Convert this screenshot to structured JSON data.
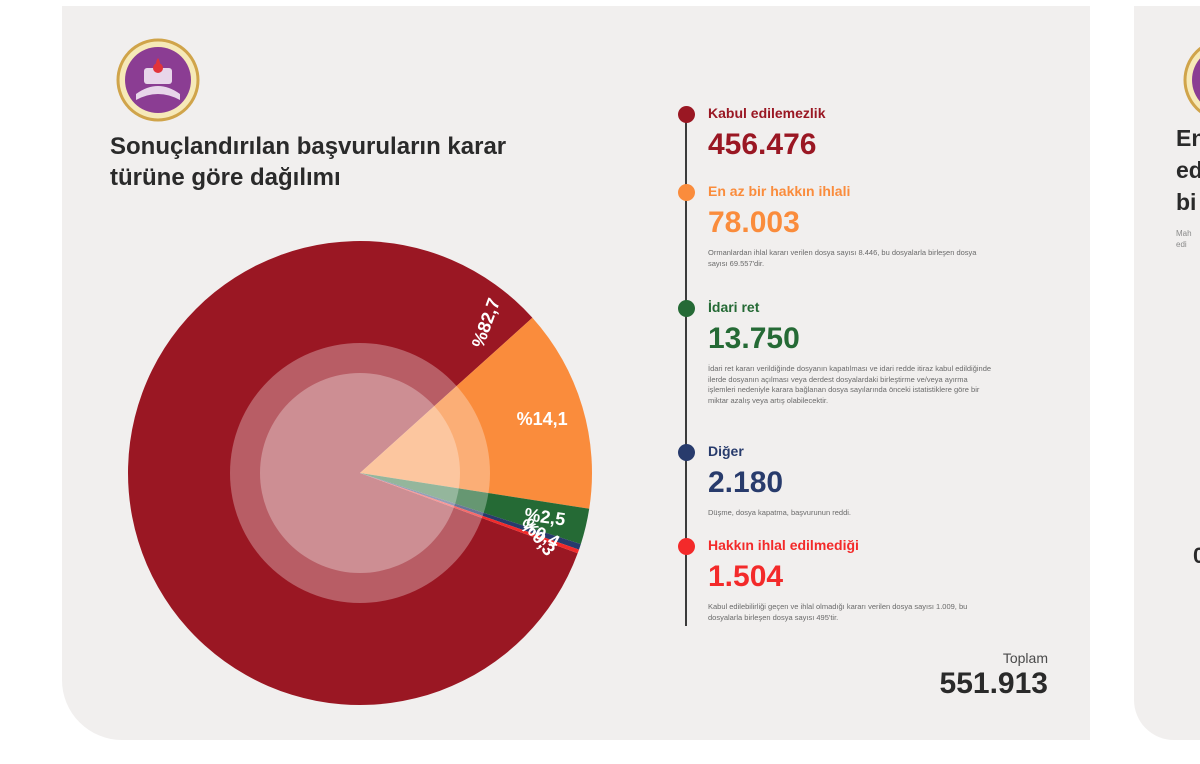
{
  "header": {
    "title": "Sonuçlandırılan başvuruların karar türüne göre dağılımı"
  },
  "chart_data": {
    "type": "pie",
    "title": "Sonuçlandırılan başvuruların karar türüne göre dağılımı",
    "slices": [
      {
        "name": "Kabul edilemezlik",
        "value": 456476,
        "percent_label": "%82,7",
        "color": "#9a1723"
      },
      {
        "name": "En az bir hakkın ihlali",
        "value": 78003,
        "percent_label": "%14,1",
        "color": "#fa8c3c"
      },
      {
        "name": "İdari ret",
        "value": 13750,
        "percent_label": "%2,5",
        "color": "#256a35"
      },
      {
        "name": "Diğer",
        "value": 2180,
        "percent_label": "%0,4",
        "color": "#283b6c"
      },
      {
        "name": "Hakkın ihlal edilmediği",
        "value": 1504,
        "percent_label": "%0,3",
        "color": "#f32a2a"
      }
    ],
    "legend": "right",
    "total_label": "Toplam",
    "total_value": "551.913"
  },
  "legend": [
    {
      "label": "Kabul edilemezlik",
      "value": "456.476",
      "note": "",
      "color": "#9a1723"
    },
    {
      "label": "En az bir hakkın ihlali",
      "value": "78.003",
      "note": "Ormanlardan ihlal kararı verilen dosya sayısı 8.446, bu dosyalarla birleşen dosya sayısı 69.557'dir.",
      "color": "#fa8c3c"
    },
    {
      "label": "İdari ret",
      "value": "13.750",
      "note": "İdari ret kararı verildiğinde dosyanın kapatılması ve idari redde itiraz kabul edildiğinde ilerde dosyanın açılması veya derdest dosyalardaki birleştirme ve/veya ayırma işlemleri nedeniyle karara bağlanan dosya sayılarında önceki istatistiklere göre bir miktar azalış veya artış olabilecektir.",
      "color": "#256a35"
    },
    {
      "label": "Diğer",
      "value": "2.180",
      "note": "Düşme, dosya kapatma, başvurunun reddi.",
      "color": "#283b6c"
    },
    {
      "label": "Hakkın ihlal edilmediği",
      "value": "1.504",
      "note": "Kabul edilebilirliği geçen ve ihlal olmadığı kararı verilen dosya sayısı 1.009, bu dosyalarla birleşen dosya sayısı 495'tir.",
      "color": "#f32a2a"
    }
  ],
  "total": {
    "label": "Toplam",
    "value": "551.913"
  },
  "right_panel": {
    "title_lines": [
      "En",
      "ed",
      "bi"
    ],
    "note_lines": [
      "Mah",
      "edi"
    ],
    "bullet": "0"
  },
  "colors": {
    "card_bg": "#f1efee",
    "logo_purple": "#8b3d93",
    "logo_gold": "#d0a44a"
  },
  "icons": {
    "logo": "court-emblem-icon"
  }
}
